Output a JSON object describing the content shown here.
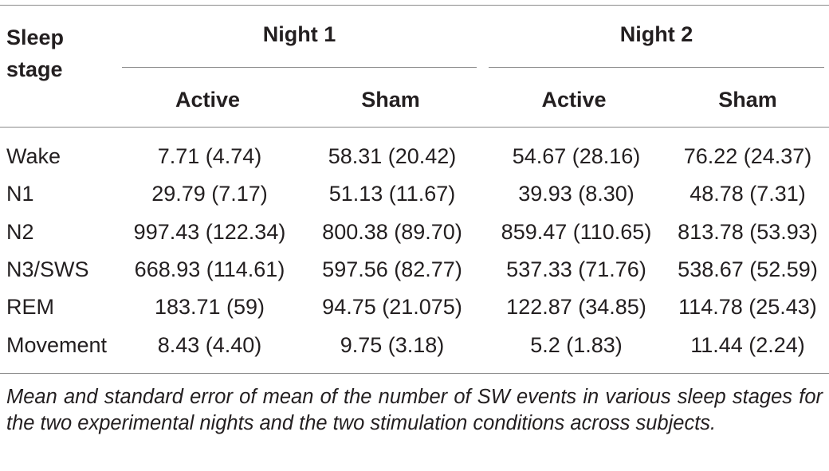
{
  "table": {
    "header": {
      "stage_label": "Sleep stage",
      "night1_label": "Night 1",
      "night2_label": "Night 2",
      "subheaders": [
        "Active",
        "Sham",
        "Active",
        "Sham"
      ]
    },
    "rows": [
      {
        "stage": "Wake",
        "values": [
          "7.71 (4.74)",
          "58.31 (20.42)",
          "54.67 (28.16)",
          "76.22 (24.37)"
        ]
      },
      {
        "stage": "N1",
        "values": [
          "29.79 (7.17)",
          "51.13 (11.67)",
          "39.93 (8.30)",
          "48.78 (7.31)"
        ]
      },
      {
        "stage": "N2",
        "values": [
          "997.43 (122.34)",
          "800.38 (89.70)",
          "859.47 (110.65)",
          "813.78 (53.93)"
        ]
      },
      {
        "stage": "N3/SWS",
        "values": [
          "668.93 (114.61)",
          "597.56 (82.77)",
          "537.33 (71.76)",
          "538.67 (52.59)"
        ]
      },
      {
        "stage": "REM",
        "values": [
          "183.71 (59)",
          "94.75 (21.075)",
          "122.87 (34.85)",
          "114.78 (25.43)"
        ]
      },
      {
        "stage": "Movement",
        "values": [
          "8.43 (4.40)",
          "9.75 (3.18)",
          "5.2 (1.83)",
          "11.44 (2.24)"
        ]
      }
    ]
  },
  "caption": "Mean and standard error of mean of the number of SW events in various sleep stages for the two experimental nights and the two stimulation conditions across subjects."
}
